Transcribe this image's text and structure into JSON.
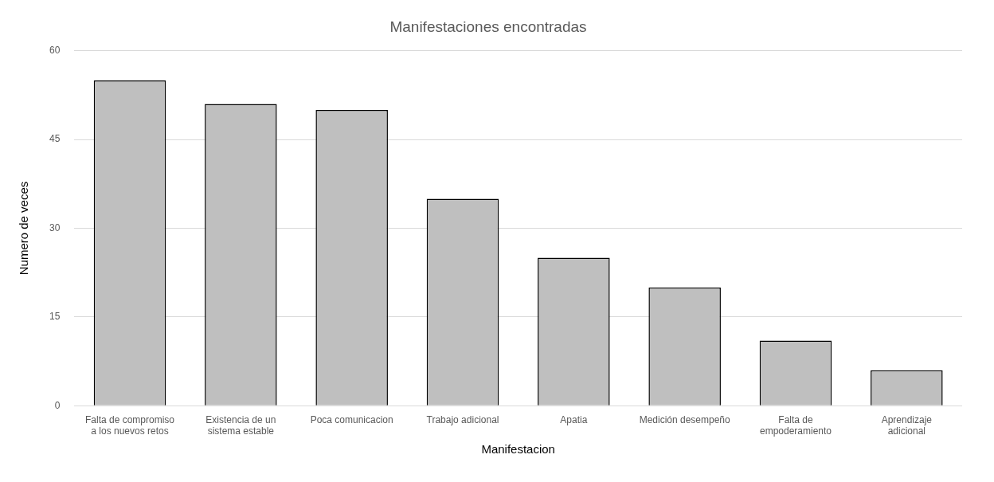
{
  "chart_data": {
    "type": "bar",
    "title": "Manifestaciones encontradas",
    "xlabel": "Manifestacion",
    "ylabel": "Numero de veces",
    "categories": [
      "Falta de compromiso a los nuevos retos",
      "Existencia de un sistema estable",
      "Poca comunicacion",
      "Trabajo adicional",
      "Apatia",
      "Medición desempeño",
      "Falta de empoderamiento",
      "Aprendizaje adicional"
    ],
    "values": [
      55,
      51,
      50,
      35,
      25,
      20,
      11,
      6
    ],
    "color": "#bfbfbf",
    "ylim": [
      0,
      60
    ],
    "yticks": [
      0,
      15,
      30,
      45,
      60
    ],
    "grid": "y",
    "legend": false
  }
}
